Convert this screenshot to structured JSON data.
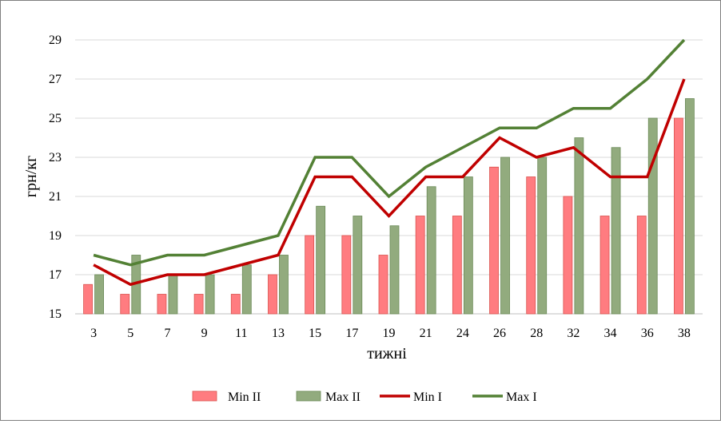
{
  "chart_data": {
    "type": "bar",
    "title": "",
    "xlabel": "тижні",
    "ylabel": "грн/кг",
    "ylim": [
      15,
      29
    ],
    "yticks": [
      15,
      17,
      19,
      21,
      23,
      25,
      27,
      29
    ],
    "grid": true,
    "legend_position": "bottom",
    "categories": [
      "3",
      "5",
      "7",
      "9",
      "11",
      "13",
      "15",
      "17",
      "19",
      "21",
      "24",
      "26",
      "28",
      "32",
      "34",
      "36",
      "38"
    ],
    "bar_series": [
      {
        "name": "Min II",
        "color": "#ff7c80",
        "values": [
          16.5,
          16,
          16,
          16,
          16,
          17,
          19,
          19,
          18,
          20,
          20,
          22.5,
          22,
          21,
          20,
          20,
          25
        ]
      },
      {
        "name": "Max II",
        "color": "#92ab7e",
        "values": [
          17,
          18,
          17,
          17,
          17.5,
          18,
          20.5,
          20,
          19.5,
          21.5,
          22,
          23,
          23,
          24,
          23.5,
          25,
          26
        ]
      }
    ],
    "line_series": [
      {
        "name": "Min I",
        "color": "#c00000",
        "values": [
          17.5,
          16.5,
          17,
          17,
          17.5,
          18,
          22,
          22,
          20,
          22,
          22,
          24,
          23,
          23.5,
          22,
          22,
          27
        ]
      },
      {
        "name": "Max I",
        "color": "#538135",
        "values": [
          18,
          17.5,
          18,
          18,
          18.5,
          19,
          23,
          23,
          21,
          22.5,
          23.5,
          24.5,
          24.5,
          25.5,
          25.5,
          27,
          29
        ]
      }
    ]
  }
}
